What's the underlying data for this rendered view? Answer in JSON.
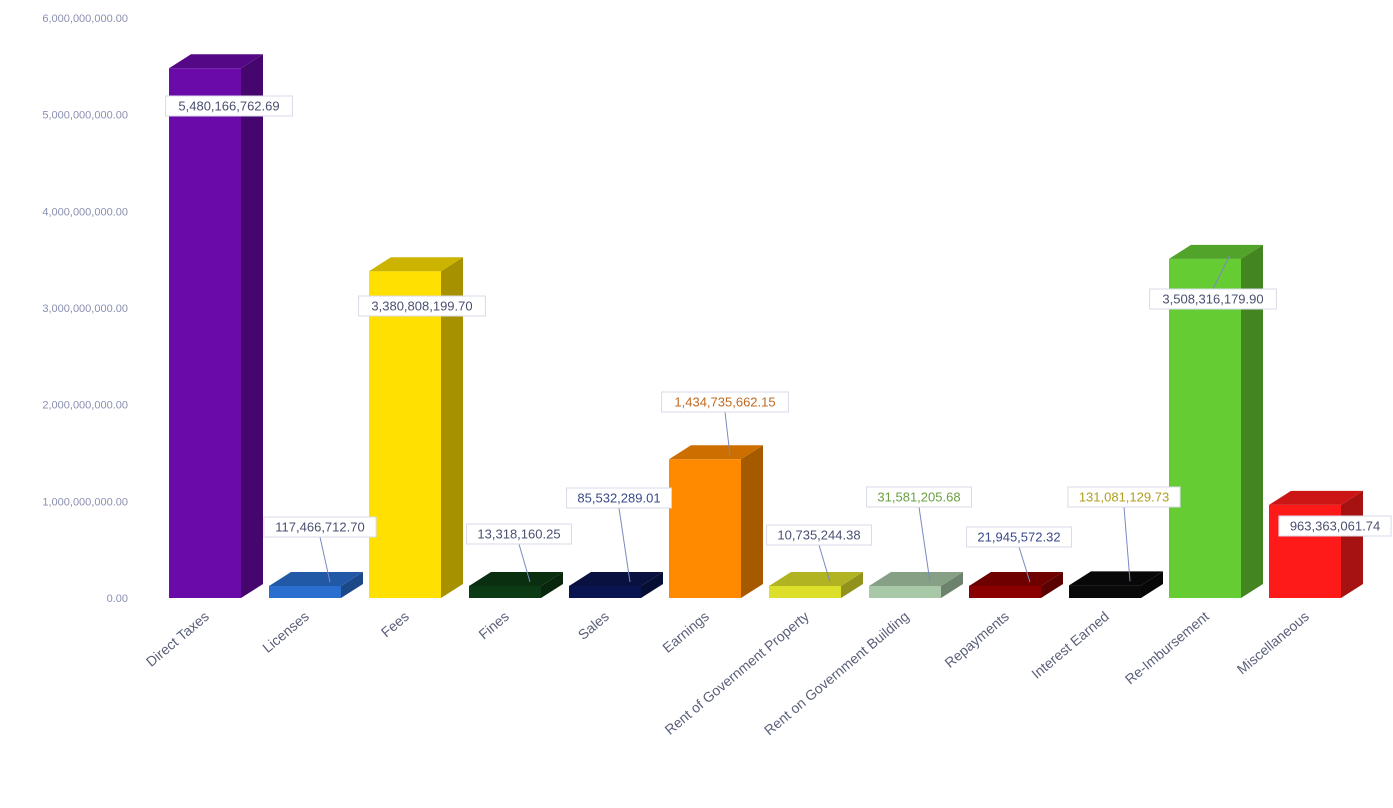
{
  "chart_data": {
    "type": "bar",
    "title": "",
    "xlabel": "",
    "ylabel": "",
    "ylim": [
      0,
      6000000000
    ],
    "yticks": [
      0,
      1000000000,
      2000000000,
      3000000000,
      4000000000,
      5000000000,
      6000000000
    ],
    "ytick_labels": [
      "0.00",
      "1,000,000,000.00",
      "2,000,000,000.00",
      "3,000,000,000.00",
      "4,000,000,000.00",
      "5,000,000,000.00",
      "6,000,000,000.00"
    ],
    "grid": false,
    "style": "3d-column",
    "categories": [
      "Direct Taxes",
      "Licenses",
      "Fees",
      "Fines",
      "Sales",
      "Earnings",
      "Rent of Government Property",
      "Rent on Government Building",
      "Repayments",
      "Interest Earned",
      "Re-Imbursement",
      "Miscellaneous"
    ],
    "values": [
      5480166762.69,
      117466712.7,
      3380808199.7,
      13318160.25,
      85532289.01,
      1434735662.15,
      10735244.38,
      31581205.68,
      21945572.32,
      131081129.73,
      3508316179.9,
      963363061.74
    ],
    "value_labels": [
      "5,480,166,762.69",
      "117,466,712.70",
      "3,380,808,199.70",
      "13,318,160.25",
      "85,532,289.01",
      "1,434,735,662.15",
      "10,735,244.38",
      "31,581,205.68",
      "21,945,572.32",
      "131,081,129.73",
      "3,508,316,179.90",
      "963,363,061.74"
    ],
    "colors": [
      "#6a0aa8",
      "#2a6fd0",
      "#ffe000",
      "#0c3a14",
      "#0a1550",
      "#ff8a00",
      "#dde02a",
      "#a8c8a8",
      "#8a0000",
      "#0a0a0a",
      "#66cc33",
      "#ff1a1a"
    ],
    "label_colors": [
      "#4a5070",
      "#4a5070",
      "#4a5070",
      "#4a5070",
      "#3a4a8a",
      "#c06a20",
      "#4a5070",
      "#6aa040",
      "#3a4a8a",
      "#b0a020",
      "#4a5070",
      "#4a5070"
    ]
  }
}
